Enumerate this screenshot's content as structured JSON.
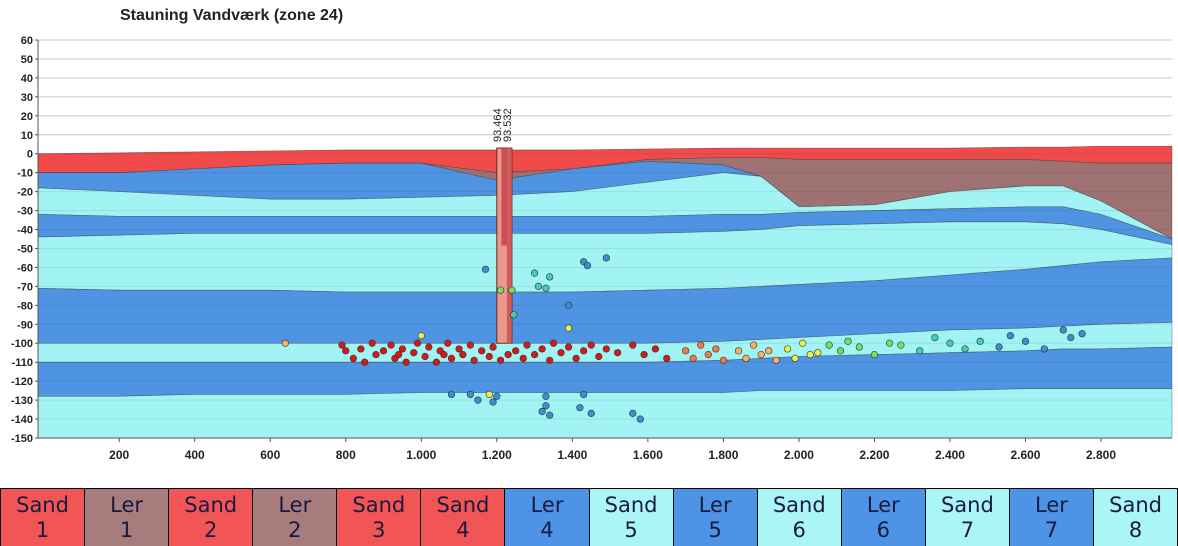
{
  "chart_data": {
    "type": "cross-section",
    "title": "Stauning Vandværk (zone 24)",
    "xlim": [
      -15,
      2988
    ],
    "ylim": [
      -150,
      60
    ],
    "xticks": [
      200,
      400,
      600,
      800,
      {
        "value": 1000,
        "label": "1.000"
      },
      {
        "value": 1200,
        "label": "1.200"
      },
      {
        "value": 1400,
        "label": "1.400"
      },
      {
        "value": 1600,
        "label": "1.600"
      },
      {
        "value": 1800,
        "label": "1.800"
      },
      {
        "value": 2000,
        "label": "2.000"
      },
      {
        "value": 2200,
        "label": "2.200"
      },
      {
        "value": 2400,
        "label": "2.400"
      },
      {
        "value": 2600,
        "label": "2.600"
      },
      {
        "value": 2800,
        "label": "2.800"
      }
    ],
    "yticks": [
      60,
      50,
      40,
      30,
      20,
      10,
      0,
      -10,
      -20,
      -30,
      -40,
      -50,
      -60,
      -70,
      -80,
      -90,
      -100,
      -110,
      -120,
      -130,
      -140,
      -150
    ],
    "grid": true,
    "x": [
      -15,
      200,
      400,
      600,
      800,
      1000,
      1200,
      1400,
      1600,
      1800,
      1900,
      2000,
      2200,
      2400,
      2600,
      2700,
      2800,
      2988
    ],
    "layers": [
      {
        "color": "#f04a4a",
        "top": [
          0,
          0.5,
          1,
          1.5,
          2,
          2,
          2,
          2,
          2.5,
          3,
          3,
          3,
          3,
          3,
          3.5,
          3.5,
          4,
          4
        ],
        "bottom": [
          -10,
          -10,
          -8,
          -6,
          -5,
          -5,
          -10,
          -8,
          -3,
          -2,
          -2,
          -3,
          -3,
          -3,
          -3,
          -4,
          -5,
          -5
        ]
      },
      {
        "color": "#9e7272",
        "top": [
          -10,
          -10,
          -8,
          -6,
          -5,
          -5,
          -10,
          -8,
          -3,
          -2,
          -2,
          -3,
          -3,
          -3,
          -3,
          -4,
          -5,
          -5
        ],
        "bottom": [
          -10,
          -10,
          -8,
          -6,
          -5,
          -5,
          -14,
          -8,
          -4,
          -6,
          -12,
          -28,
          -27,
          -20,
          -17,
          -17,
          -25,
          -45
        ]
      },
      {
        "color": "#4f93e3",
        "top": [
          -10,
          -10,
          -8,
          -6,
          -5,
          -5,
          -14,
          -8,
          -4,
          -6,
          -12,
          -28,
          -27,
          -20,
          -17,
          -17,
          -25,
          -45
        ],
        "bottom": [
          -18,
          -20,
          -22,
          -24,
          -24,
          -23,
          -22,
          -20,
          -15,
          -10,
          -12,
          -28,
          -27,
          -20,
          -17,
          -17,
          -25,
          -45
        ]
      },
      {
        "color": "#a2f4f4",
        "top": [
          -18,
          -20,
          -22,
          -24,
          -24,
          -23,
          -22,
          -20,
          -15,
          -10,
          -12,
          -28,
          -27,
          -20,
          -17,
          -17,
          -25,
          -45
        ],
        "bottom": [
          -32,
          -33,
          -33,
          -33,
          -33,
          -33,
          -33,
          -33,
          -33,
          -32,
          -32,
          -31,
          -30,
          -29,
          -28,
          -28,
          -32,
          -45
        ]
      },
      {
        "color": "#4f93e3",
        "top": [
          -32,
          -33,
          -33,
          -33,
          -33,
          -33,
          -33,
          -33,
          -33,
          -32,
          -32,
          -31,
          -30,
          -29,
          -28,
          -28,
          -32,
          -45
        ],
        "bottom": [
          -44,
          -43,
          -42,
          -42,
          -42,
          -42,
          -42,
          -42,
          -42,
          -41,
          -40,
          -38,
          -37,
          -36,
          -36,
          -37,
          -40,
          -48
        ]
      },
      {
        "color": "#a2f4f4",
        "top": [
          -44,
          -43,
          -42,
          -42,
          -42,
          -42,
          -42,
          -42,
          -42,
          -41,
          -40,
          -38,
          -37,
          -36,
          -36,
          -37,
          -40,
          -48
        ],
        "bottom": [
          -71,
          -72,
          -72,
          -72,
          -73,
          -73,
          -73,
          -73,
          -72,
          -71,
          -70,
          -69,
          -67,
          -64,
          -61,
          -59,
          -57,
          -55
        ]
      },
      {
        "color": "#4f93e3",
        "top": [
          -71,
          -72,
          -72,
          -72,
          -73,
          -73,
          -73,
          -73,
          -72,
          -71,
          -70,
          -69,
          -67,
          -64,
          -61,
          -59,
          -57,
          -55
        ],
        "bottom": [
          -100,
          -100,
          -100,
          -100,
          -100,
          -100,
          -100,
          -100,
          -100,
          -99,
          -98,
          -97,
          -95,
          -93,
          -92,
          -91,
          -90,
          -89
        ]
      },
      {
        "color": "#a2f4f4",
        "top": [
          -100,
          -100,
          -100,
          -100,
          -100,
          -100,
          -100,
          -100,
          -100,
          -99,
          -98,
          -97,
          -95,
          -93,
          -92,
          -91,
          -90,
          -89
        ],
        "bottom": [
          -110,
          -110,
          -110,
          -110,
          -110,
          -110,
          -110,
          -110,
          -110,
          -109,
          -108,
          -107,
          -106,
          -105,
          -104,
          -103,
          -103,
          -102
        ]
      },
      {
        "color": "#4f93e3",
        "top": [
          -110,
          -110,
          -110,
          -110,
          -110,
          -110,
          -110,
          -110,
          -110,
          -109,
          -108,
          -107,
          -106,
          -105,
          -104,
          -103,
          -103,
          -102
        ],
        "bottom": [
          -128,
          -128,
          -127,
          -127,
          -127,
          -126,
          -126,
          -126,
          -126,
          -126,
          -125,
          -125,
          -125,
          -125,
          -124,
          -124,
          -124,
          -124
        ]
      },
      {
        "color": "#a2f4f4",
        "top": [
          -128,
          -128,
          -127,
          -127,
          -127,
          -126,
          -126,
          -126,
          -126,
          -126,
          -125,
          -125,
          -125,
          -125,
          -124,
          -124,
          -124,
          -124
        ],
        "bottom": [
          -150,
          -150,
          -150,
          -150,
          -150,
          -150,
          -150,
          -150,
          -150,
          -150,
          -150,
          -150,
          -150,
          -150,
          -150,
          -150,
          -150,
          -150
        ]
      }
    ],
    "well": {
      "x": [
        1200,
        1240
      ],
      "top": 3,
      "bottom": -100,
      "labels": [
        "93.464",
        "93.532"
      ]
    },
    "points": [
      {
        "color": "#d81818",
        "x": [
          790,
          800,
          820,
          840,
          850,
          870,
          880,
          900,
          920,
          930,
          950,
          960,
          980,
          990,
          1010,
          1020,
          1040,
          1050,
          1070,
          1080,
          1100,
          1110,
          1130,
          1140,
          1160,
          1180,
          1190,
          1250,
          1270,
          1280,
          1300,
          1320,
          1340,
          1350,
          1370,
          1390,
          1410,
          1430,
          1450,
          1470,
          1490,
          1520,
          1560,
          1590,
          1620,
          1650,
          1230,
          1210,
          1060,
          940
        ],
        "y": [
          -101,
          -104,
          -108,
          -103,
          -110,
          -100,
          -106,
          -104,
          -101,
          -108,
          -103,
          -110,
          -105,
          -100,
          -107,
          -102,
          -110,
          -104,
          -100,
          -108,
          -103,
          -106,
          -101,
          -109,
          -104,
          -107,
          -102,
          -104,
          -108,
          -101,
          -106,
          -103,
          -109,
          -100,
          -105,
          -102,
          -108,
          -104,
          -101,
          -107,
          -103,
          -105,
          -101,
          -106,
          -103,
          -108,
          -106,
          -109,
          -106,
          -106
        ]
      },
      {
        "color": "#f07a45",
        "x": [
          1700,
          1720,
          1740,
          1760,
          1780,
          1800
        ],
        "y": [
          -104,
          -108,
          -101,
          -106,
          -103,
          -109
        ]
      },
      {
        "color": "#f5b060",
        "x": [
          640,
          1840,
          1860,
          1880,
          1900,
          1920,
          1940
        ],
        "y": [
          -100,
          -104,
          -108,
          -101,
          -106,
          -104,
          -109
        ]
      },
      {
        "color": "#e8f050",
        "x": [
          1000,
          1390,
          1970,
          1990,
          2010,
          2030,
          2050,
          1180
        ],
        "y": [
          -96,
          -92,
          -103,
          -108,
          -100,
          -106,
          -105,
          -127
        ]
      },
      {
        "color": "#70e060",
        "x": [
          2080,
          2110,
          2130,
          2160,
          2200,
          2240,
          2270,
          1210,
          1240
        ],
        "y": [
          -101,
          -104,
          -99,
          -102,
          -106,
          -100,
          -101,
          -72,
          -72
        ]
      },
      {
        "color": "#40d0b0",
        "x": [
          2320,
          2360,
          2400,
          2440,
          2480,
          1300,
          1310,
          1340,
          1330,
          1245
        ],
        "y": [
          -104,
          -97,
          -100,
          -103,
          -99,
          -63,
          -70,
          -65,
          -71,
          -85
        ]
      },
      {
        "color": "#3a8fd0",
        "x": [
          2530,
          2560,
          2600,
          2650,
          2700,
          2720,
          2750,
          1170,
          1430,
          1440,
          1490,
          1390,
          1080,
          1130,
          1150,
          1190,
          1200,
          1330,
          1320,
          1340,
          1330,
          1430,
          1420,
          1450,
          1560,
          1580
        ],
        "y": [
          -102,
          -96,
          -99,
          -103,
          -93,
          -97,
          -95,
          -61,
          -57,
          -59,
          -55,
          -80,
          -127,
          -127,
          -130,
          -131,
          -128,
          -128,
          -136,
          -138,
          -133,
          -127,
          -134,
          -137,
          -137,
          -140
        ]
      }
    ],
    "legend": [
      {
        "name": "Sand",
        "number": 1,
        "color": "#f25555"
      },
      {
        "name": "Ler",
        "number": 1,
        "color": "#a67c7c"
      },
      {
        "name": "Sand",
        "number": 2,
        "color": "#f25555"
      },
      {
        "name": "Ler",
        "number": 2,
        "color": "#a67c7c"
      },
      {
        "name": "Sand",
        "number": 3,
        "color": "#f25555"
      },
      {
        "name": "Sand",
        "number": 4,
        "color": "#f25555"
      },
      {
        "name": "Ler",
        "number": 4,
        "color": "#4d94e6"
      },
      {
        "name": "Sand",
        "number": 5,
        "color": "#aaf5f5"
      },
      {
        "name": "Ler",
        "number": 5,
        "color": "#4d94e6"
      },
      {
        "name": "Sand",
        "number": 6,
        "color": "#aaf5f5"
      },
      {
        "name": "Ler",
        "number": 6,
        "color": "#4d94e6"
      },
      {
        "name": "Sand",
        "number": 7,
        "color": "#aaf5f5"
      },
      {
        "name": "Ler",
        "number": 7,
        "color": "#4d94e6"
      },
      {
        "name": "Sand",
        "number": 8,
        "color": "#aaf5f5"
      }
    ]
  }
}
